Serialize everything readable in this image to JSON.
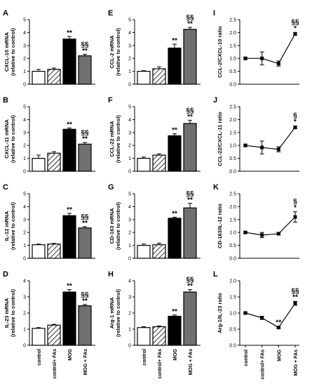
{
  "x_categories": [
    "control",
    "control+ FAs",
    "MOG",
    "MOG + FAs"
  ],
  "colors": {
    "control": "#ffffff",
    "fas": "hatch",
    "mog": "#000000",
    "mogfas": "#707070"
  },
  "chart_data": [
    {
      "panel": "A",
      "type": "bar",
      "ylabel": [
        "CXCL-10 mRNA",
        "(relative to control)"
      ],
      "ylim": [
        0,
        5
      ],
      "yticks": [
        0,
        1,
        2,
        3,
        4,
        5
      ],
      "values": [
        1.0,
        1.15,
        3.5,
        2.2
      ],
      "errors": [
        0.15,
        0.1,
        0.2,
        0.12
      ],
      "annotations": [
        "",
        "",
        "**",
        "§§\n**"
      ]
    },
    {
      "panel": "B",
      "type": "bar",
      "ylabel": [
        "CXCL-11 mRNA",
        "(relative to control)"
      ],
      "ylim": [
        0,
        5
      ],
      "yticks": [
        0,
        1,
        2,
        3,
        4,
        5
      ],
      "values": [
        1.0,
        1.4,
        3.25,
        2.1
      ],
      "errors": [
        0.25,
        0.12,
        0.1,
        0.12
      ],
      "annotations": [
        "",
        "",
        "**",
        "§§\n**"
      ]
    },
    {
      "panel": "C",
      "type": "bar",
      "ylabel": [
        "IL-12 mRNA",
        "(relative to control)"
      ],
      "ylim": [
        0,
        5
      ],
      "yticks": [
        0,
        1,
        2,
        3,
        4,
        5
      ],
      "values": [
        1.05,
        1.1,
        3.3,
        2.35
      ],
      "errors": [
        0.05,
        0.05,
        0.18,
        0.1
      ],
      "annotations": [
        "",
        "",
        "**",
        "§§\n**"
      ]
    },
    {
      "panel": "D",
      "type": "bar",
      "ylabel": [
        "IL-23 mRNA",
        "(relative to control)"
      ],
      "ylim": [
        0,
        4
      ],
      "yticks": [
        0,
        1,
        2,
        3,
        4
      ],
      "values": [
        1.05,
        1.25,
        3.3,
        2.45
      ],
      "errors": [
        0.05,
        0.05,
        0.15,
        0.08
      ],
      "annotations": [
        "",
        "",
        "**",
        "§§\n**"
      ]
    },
    {
      "panel": "E",
      "type": "bar",
      "ylabel": [
        "CCL-2 mRNA",
        "(relative to control)"
      ],
      "ylim": [
        0,
        5
      ],
      "yticks": [
        0,
        1,
        2,
        3,
        4,
        5
      ],
      "values": [
        1.0,
        1.2,
        2.8,
        4.25
      ],
      "errors": [
        0.05,
        0.15,
        0.3,
        0.15
      ],
      "annotations": [
        "",
        "",
        "**",
        "§§\n**"
      ]
    },
    {
      "panel": "F",
      "type": "bar",
      "ylabel": [
        "CCL-22 mRNA",
        "(relative to control)"
      ],
      "ylim": [
        0,
        5
      ],
      "yticks": [
        0,
        1,
        2,
        3,
        4,
        5
      ],
      "values": [
        1.0,
        1.25,
        2.75,
        3.7
      ],
      "errors": [
        0.1,
        0.1,
        0.15,
        0.25
      ],
      "annotations": [
        "",
        "",
        "**",
        "§§\n**"
      ]
    },
    {
      "panel": "G",
      "type": "bar",
      "ylabel": [
        "CD-163 mRNA",
        "(relative to control)"
      ],
      "ylim": [
        0,
        5
      ],
      "yticks": [
        0,
        1,
        2,
        3,
        4,
        5
      ],
      "values": [
        1.0,
        1.05,
        3.1,
        3.9
      ],
      "errors": [
        0.1,
        0.12,
        0.08,
        0.35
      ],
      "annotations": [
        "",
        "",
        "**",
        "§§\n**"
      ]
    },
    {
      "panel": "H",
      "type": "bar",
      "ylabel": [
        "Arg-1 mRNA",
        "(relative to control)"
      ],
      "ylim": [
        0,
        4
      ],
      "yticks": [
        0,
        1,
        2,
        3,
        4
      ],
      "values": [
        1.1,
        1.15,
        1.8,
        3.3
      ],
      "errors": [
        0.05,
        0.05,
        0.08,
        0.15
      ],
      "annotations": [
        "",
        "",
        "**",
        "§§\n**"
      ]
    },
    {
      "panel": "I",
      "type": "line",
      "ylabel": [
        "CCL-2/CXCL-10 ratio"
      ],
      "ylim": [
        0,
        2.5
      ],
      "yticks": [
        0.0,
        0.5,
        1.0,
        1.5,
        2.0,
        2.5
      ],
      "values": [
        1.0,
        1.0,
        0.8,
        1.95
      ],
      "errors": [
        0.05,
        0.25,
        0.1,
        0.05
      ],
      "annotations": [
        "",
        "",
        "",
        "§§\n*"
      ]
    },
    {
      "panel": "J",
      "type": "line",
      "ylabel": [
        "CCL-22/CXCL-11 ratio"
      ],
      "ylim": [
        0,
        2.5
      ],
      "yticks": [
        0.0,
        0.5,
        1.0,
        1.5,
        2.0,
        2.5
      ],
      "values": [
        1.0,
        0.92,
        0.85,
        1.7
      ],
      "errors": [
        0.05,
        0.25,
        0.1,
        0.05
      ],
      "annotations": [
        "",
        "",
        "",
        "§\n*"
      ]
    },
    {
      "panel": "K",
      "type": "line",
      "ylabel": [
        "CD-163/IL-12 ratio"
      ],
      "ylim": [
        0,
        2.5
      ],
      "yticks": [
        0.0,
        0.5,
        1.0,
        1.5,
        2.0,
        2.5
      ],
      "values": [
        1.0,
        0.9,
        0.95,
        1.6
      ],
      "errors": [
        0.03,
        0.1,
        0.05,
        0.2
      ],
      "annotations": [
        "",
        "",
        "",
        "§\n*"
      ]
    },
    {
      "panel": "L",
      "type": "line",
      "ylabel": [
        "Arg-1/IL-23 ratio"
      ],
      "ylim": [
        0,
        2.0
      ],
      "yticks": [
        0.0,
        0.5,
        1.0,
        1.5,
        2.0
      ],
      "values": [
        1.0,
        0.85,
        0.55,
        1.3
      ],
      "errors": [
        0.03,
        0.05,
        0.03,
        0.06
      ],
      "annotations": [
        "",
        "",
        "**",
        "§§\n**"
      ]
    }
  ]
}
